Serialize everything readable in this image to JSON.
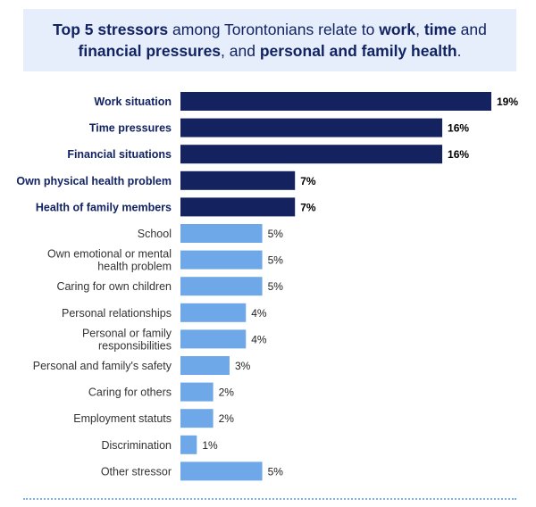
{
  "title_parts": [
    {
      "text": "Top 5 stressors",
      "bold": true
    },
    {
      "text": " among Torontonians relate to ",
      "bold": false
    },
    {
      "text": "work",
      "bold": true
    },
    {
      "text": ", ",
      "bold": false
    },
    {
      "text": "time",
      "bold": true
    },
    {
      "text": " and ",
      "bold": false
    },
    {
      "text": "financial pressures",
      "bold": true
    },
    {
      "text": ", and ",
      "bold": false
    },
    {
      "text": "personal and family health",
      "bold": true
    },
    {
      "text": ".",
      "bold": false
    }
  ],
  "colors": {
    "dark_bar": "#14225f",
    "light_bar": "#6fa8e8",
    "title_bg": "#e6eefb",
    "title_text": "#122363",
    "label_dark": "#122363",
    "label_light": "#333333",
    "rule": "#7fb0e6"
  },
  "chart_data": {
    "type": "bar",
    "orientation": "horizontal",
    "value_suffix": "%",
    "categories": [
      {
        "lines": [
          "Work situation"
        ],
        "value": 19,
        "highlight": true
      },
      {
        "lines": [
          "Time pressures"
        ],
        "value": 16,
        "highlight": true
      },
      {
        "lines": [
          "Financial situations"
        ],
        "value": 16,
        "highlight": true
      },
      {
        "lines": [
          "Own physical health problem"
        ],
        "value": 7,
        "highlight": true
      },
      {
        "lines": [
          "Health of family members"
        ],
        "value": 7,
        "highlight": true
      },
      {
        "lines": [
          "School"
        ],
        "value": 5,
        "highlight": false
      },
      {
        "lines": [
          "Own emotional or mental",
          "health problem"
        ],
        "value": 5,
        "highlight": false
      },
      {
        "lines": [
          "Caring for own children"
        ],
        "value": 5,
        "highlight": false
      },
      {
        "lines": [
          "Personal relationships"
        ],
        "value": 4,
        "highlight": false
      },
      {
        "lines": [
          "Personal or family",
          "responsibilities"
        ],
        "value": 4,
        "highlight": false
      },
      {
        "lines": [
          "Personal and family's safety"
        ],
        "value": 3,
        "highlight": false
      },
      {
        "lines": [
          "Caring for others"
        ],
        "value": 2,
        "highlight": false
      },
      {
        "lines": [
          "Employment statuts"
        ],
        "value": 2,
        "highlight": false
      },
      {
        "lines": [
          "Discrimination"
        ],
        "value": 1,
        "highlight": false
      },
      {
        "lines": [
          "Other stressor"
        ],
        "value": 5,
        "highlight": false
      }
    ],
    "xlim": [
      0,
      19
    ],
    "grid": false,
    "legend": "none"
  }
}
